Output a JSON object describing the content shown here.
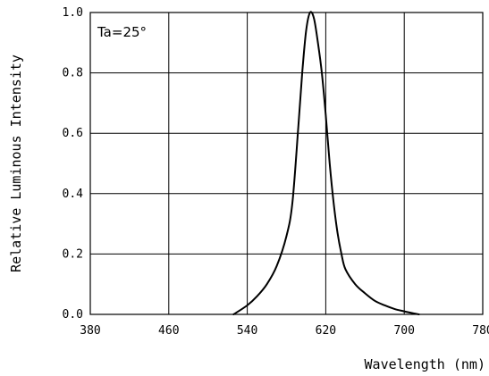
{
  "chart_data": {
    "type": "line",
    "title": "",
    "xlabel": "Wavelength (nm)",
    "ylabel": "Relative Luminous Intensity",
    "annotation": "Ta=25°",
    "xlim": [
      380,
      780
    ],
    "ylim": [
      0,
      1.0
    ],
    "x_ticks": [
      "380",
      "460",
      "540",
      "620",
      "700",
      "780"
    ],
    "y_ticks": [
      "0.0",
      "0.2",
      "0.4",
      "0.6",
      "0.8",
      "1.0"
    ],
    "grid": true,
    "series": [
      {
        "x": [
          526,
          540,
          550,
          560,
          570,
          580,
          586,
          592,
          596,
          600,
          604,
          608,
          612,
          616,
          620,
          624,
          628,
          632,
          636,
          640,
          650,
          660,
          670,
          680,
          690,
          700,
          710,
          715
        ],
        "y": [
          0.0,
          0.03,
          0.06,
          0.1,
          0.16,
          0.26,
          0.37,
          0.62,
          0.8,
          0.94,
          1.0,
          0.98,
          0.9,
          0.8,
          0.66,
          0.5,
          0.37,
          0.27,
          0.2,
          0.15,
          0.1,
          0.07,
          0.045,
          0.03,
          0.018,
          0.01,
          0.003,
          0.0
        ]
      }
    ],
    "colors": {
      "line": "#000000",
      "grid": "#000000",
      "background": "#ffffff"
    }
  }
}
